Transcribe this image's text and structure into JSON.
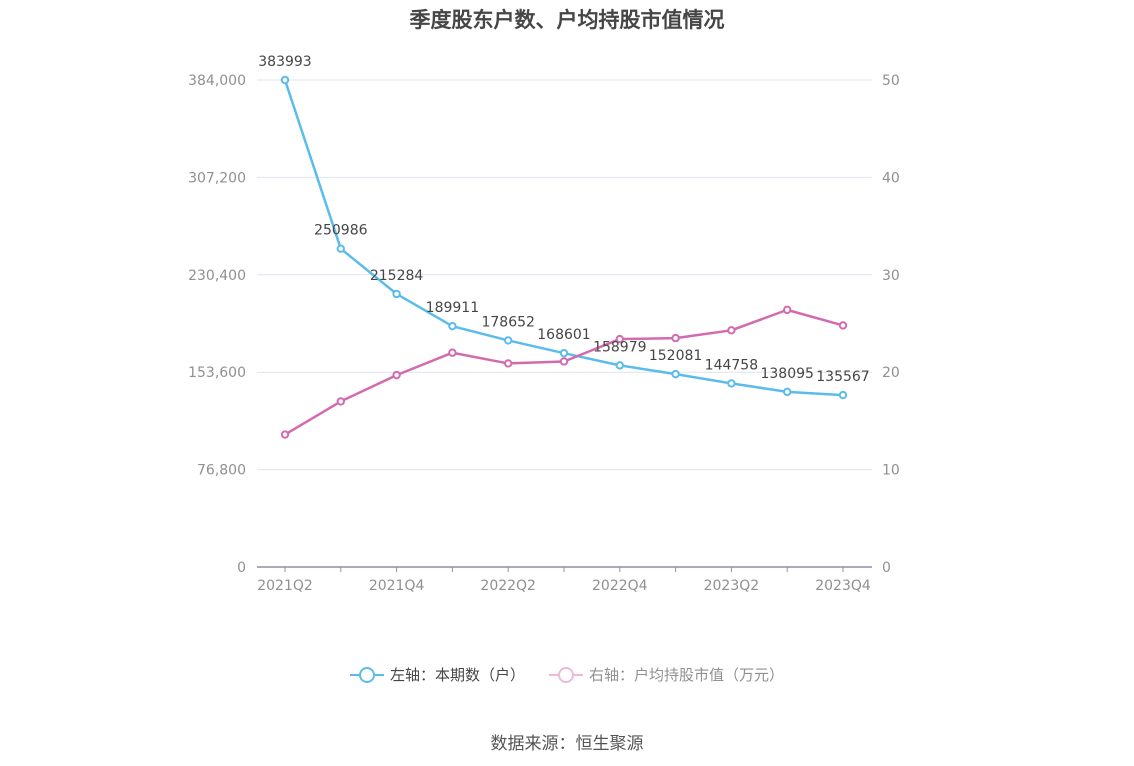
{
  "chart_data": {
    "type": "line",
    "title": "季度股东户数、户均持股市值情况",
    "categories": [
      "2021Q2",
      "2021Q3",
      "2021Q4",
      "2022Q1",
      "2022Q2",
      "2022Q3",
      "2022Q4",
      "2023Q1",
      "2023Q2",
      "2023Q3",
      "2023Q4"
    ],
    "x_tick_labels": [
      "2021Q2",
      "2021Q4",
      "2022Q2",
      "2022Q4",
      "2023Q2",
      "2023Q4"
    ],
    "left_axis": {
      "ylim": [
        0,
        384000
      ],
      "ticks": [
        "0",
        "76,800",
        "153,600",
        "230,400",
        "307,200",
        "384,000"
      ]
    },
    "right_axis": {
      "ylim": [
        0,
        50
      ],
      "ticks": [
        "0",
        "10",
        "20",
        "30",
        "40",
        "50"
      ]
    },
    "grid": true,
    "legend_position": "bottom",
    "series": [
      {
        "name": "左轴：本期数（户）",
        "axis": "left",
        "color": "#5bbcec",
        "values": [
          383993,
          250986,
          215284,
          189911,
          178652,
          168601,
          158979,
          152081,
          144758,
          138095,
          135567
        ],
        "labels": [
          "383993",
          "250986",
          "215284",
          "189911",
          "178652",
          "168601",
          "158979",
          "152081",
          "144758",
          "138095",
          "135567"
        ]
      },
      {
        "name": "右轴：户均持股市值（万元）",
        "axis": "right",
        "color": "#d46aae",
        "values": [
          13.6,
          17.0,
          19.7,
          22.0,
          20.9,
          21.1,
          23.4,
          23.5,
          24.3,
          26.4,
          24.8
        ]
      }
    ]
  },
  "source": "数据来源：恒生聚源"
}
